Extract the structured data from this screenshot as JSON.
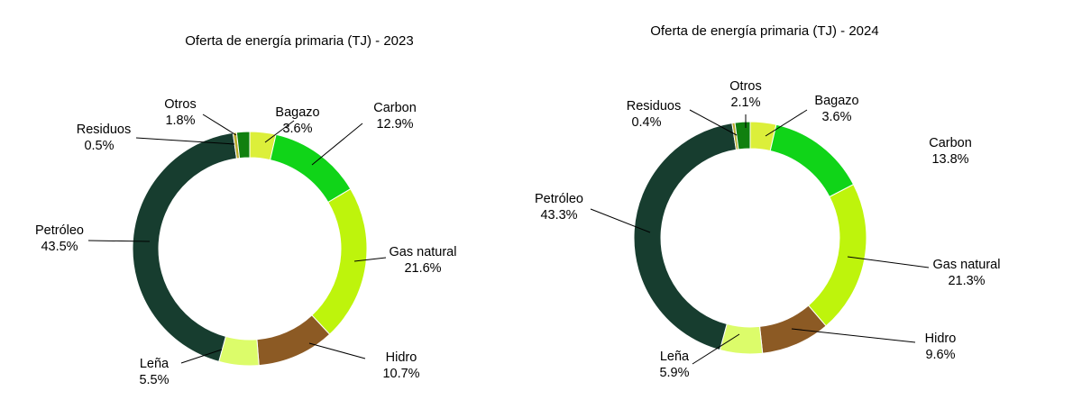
{
  "chart_data": [
    {
      "type": "pie",
      "title": "Oferta de energía primaria (TJ) - 2023",
      "categories": [
        "Bagazo",
        "Carbon",
        "Gas natural",
        "Hidro",
        "Leña",
        "Petróleo",
        "Residuos",
        "Otros"
      ],
      "values": [
        3.6,
        12.9,
        21.6,
        10.7,
        5.5,
        43.5,
        0.5,
        1.8
      ],
      "labels": [
        "3.6%",
        "12.9%",
        "21.6%",
        "10.7%",
        "5.5%",
        "43.5%",
        "0.5%",
        "1.8%"
      ],
      "colors": [
        "#dcef3a",
        "#10d418",
        "#bef40c",
        "#8c5a24",
        "#dcfc6a",
        "#173d2f",
        "#b8a92c",
        "#11800f"
      ],
      "legend": "none"
    },
    {
      "type": "pie",
      "title": "Oferta de energía primaria (TJ) - 2024",
      "categories": [
        "Bagazo",
        "Carbon",
        "Gas natural",
        "Hidro",
        "Leña",
        "Petróleo",
        "Residuos",
        "Otros"
      ],
      "values": [
        3.6,
        13.8,
        21.3,
        9.6,
        5.9,
        43.3,
        0.4,
        2.1
      ],
      "labels": [
        "3.6%",
        "13.8%",
        "21.3%",
        "9.6%",
        "5.9%",
        "43.3%",
        "0.4%",
        "2.1%"
      ],
      "colors": [
        "#dcef3a",
        "#10d418",
        "#bef40c",
        "#8c5a24",
        "#dcfc6a",
        "#173d2f",
        "#b8a92c",
        "#11800f"
      ],
      "legend": "none"
    }
  ]
}
